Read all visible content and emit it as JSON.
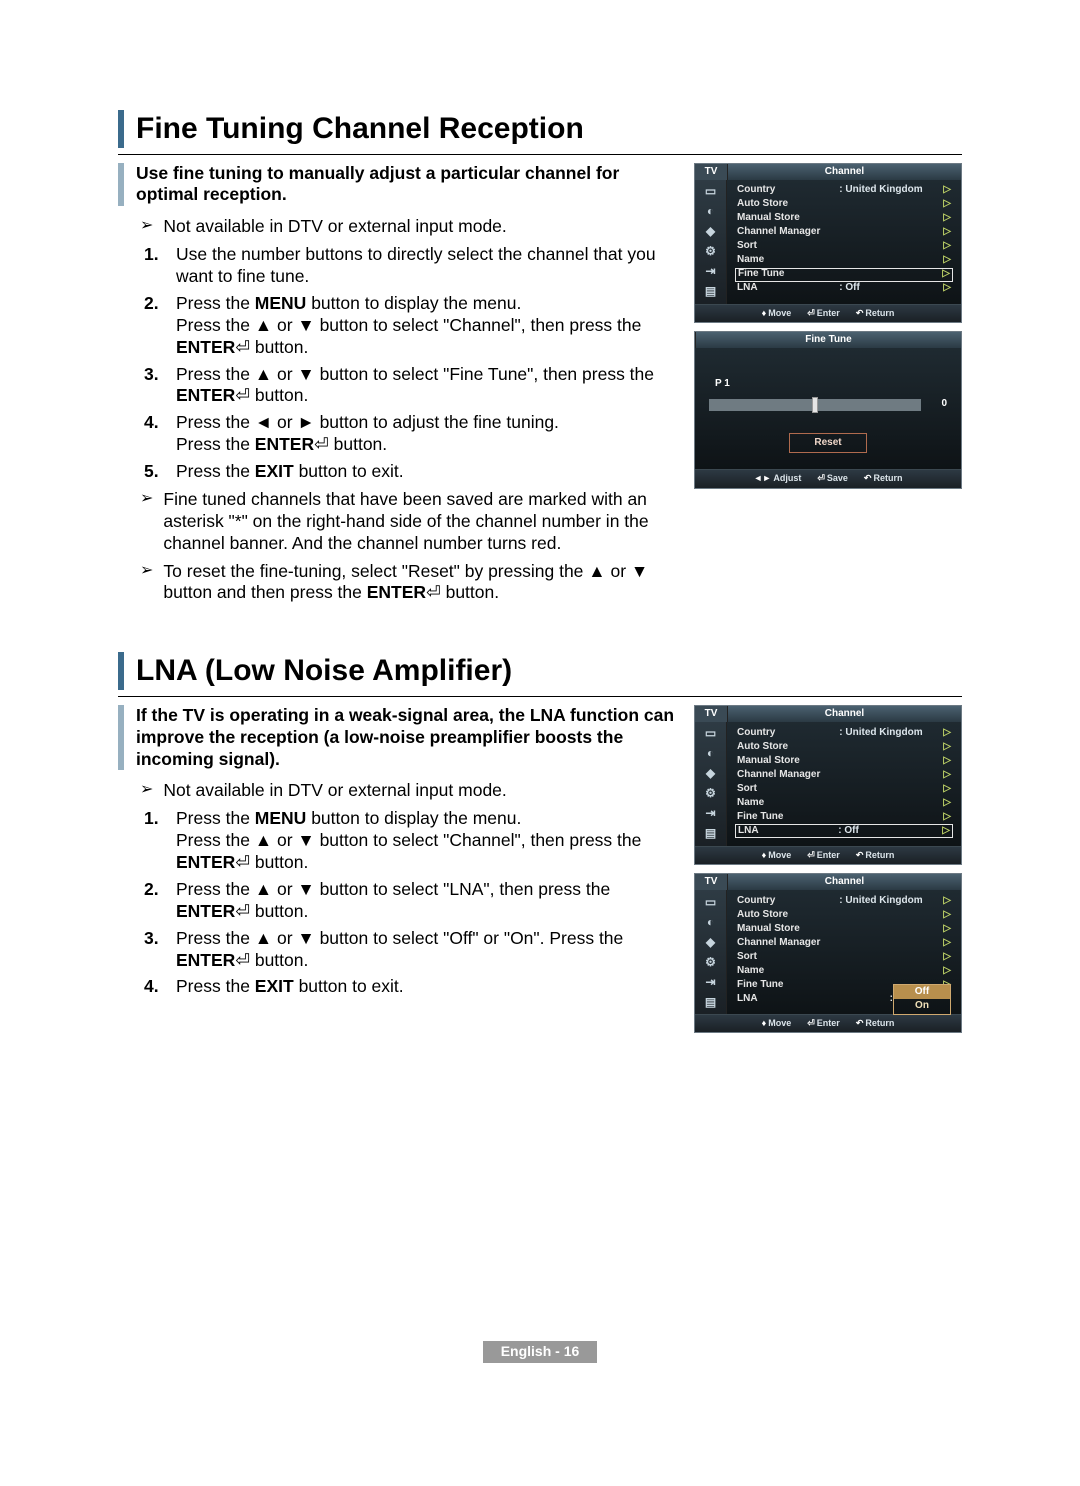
{
  "section1": {
    "title": "Fine Tuning Channel Reception",
    "intro": "Use fine tuning to manually adjust a particular channel for optimal reception.",
    "note_top": "Not available in DTV or external input mode.",
    "steps": [
      "Use the number buttons to directly select the channel that you want to fine tune.",
      "Press the <b>MENU</b> button to display the menu.<br>Press the ▲ or ▼ button to select \"Channel\", then press the <b>ENTER</b>⏎ button.",
      "Press the ▲ or ▼ button to select \"Fine Tune\", then press the <b>ENTER</b>⏎ button.",
      "Press the ◄ or ► button to adjust the fine tuning.<br>Press the <b>ENTER</b>⏎ button.",
      "Press the <b>EXIT</b> button to exit."
    ],
    "note_a": "Fine tuned channels that have been saved are marked with an asterisk \"*\" on the right-hand side of the channel number in the channel banner. And the channel number turns red.",
    "note_b": "To reset the fine-tuning, select \"Reset\" by pressing the ▲ or ▼ button and then press the <b>ENTER</b>⏎ button."
  },
  "section2": {
    "title": "LNA (Low Noise Amplifier)",
    "intro": "If the TV is operating in a weak-signal area, the LNA function can improve the reception (a low-noise preamplifier boosts the incoming signal).",
    "note_top": "Not available in DTV or external input mode.",
    "steps": [
      "Press the <b>MENU</b> button to display the menu.<br>Press the ▲ or ▼ button to select \"Channel\", then press the <b>ENTER</b>⏎ button.",
      "Press the ▲ or ▼ button to select \"LNA\", then press the <b>ENTER</b>⏎ button.",
      "Press the ▲ or ▼ button to select \"Off\" or \"On\". Press the <b>ENTER</b>⏎ button.",
      "Press the <b>EXIT</b> button to exit."
    ]
  },
  "tvmenu": {
    "corner": "TV",
    "header": "Channel",
    "items": [
      {
        "label": "Country",
        "value": ": United Kingdom"
      },
      {
        "label": "Auto Store",
        "value": ""
      },
      {
        "label": "Manual Store",
        "value": ""
      },
      {
        "label": "Channel Manager",
        "value": ""
      },
      {
        "label": "Sort",
        "value": ""
      },
      {
        "label": "Name",
        "value": ""
      },
      {
        "label": "Fine Tune",
        "value": ""
      },
      {
        "label": "LNA",
        "value": ": Off"
      }
    ],
    "footer": {
      "move": "Move",
      "enter": "Enter",
      "return": "Return"
    }
  },
  "finetune": {
    "header": "Fine Tune",
    "label": "P 1",
    "value": "0",
    "reset": "Reset",
    "footer": {
      "adjust": "Adjust",
      "save": "Save",
      "return": "Return"
    }
  },
  "lna_popup": {
    "off": "Off",
    "on": "On"
  },
  "page_footer": "English - 16",
  "colors": {
    "accent": "#3b6b8c",
    "accent_light": "#97b0c0",
    "menu_bg_top": "#1f2a31",
    "menu_bg_bot": "#0e1316",
    "arrow": "#bcd066"
  }
}
